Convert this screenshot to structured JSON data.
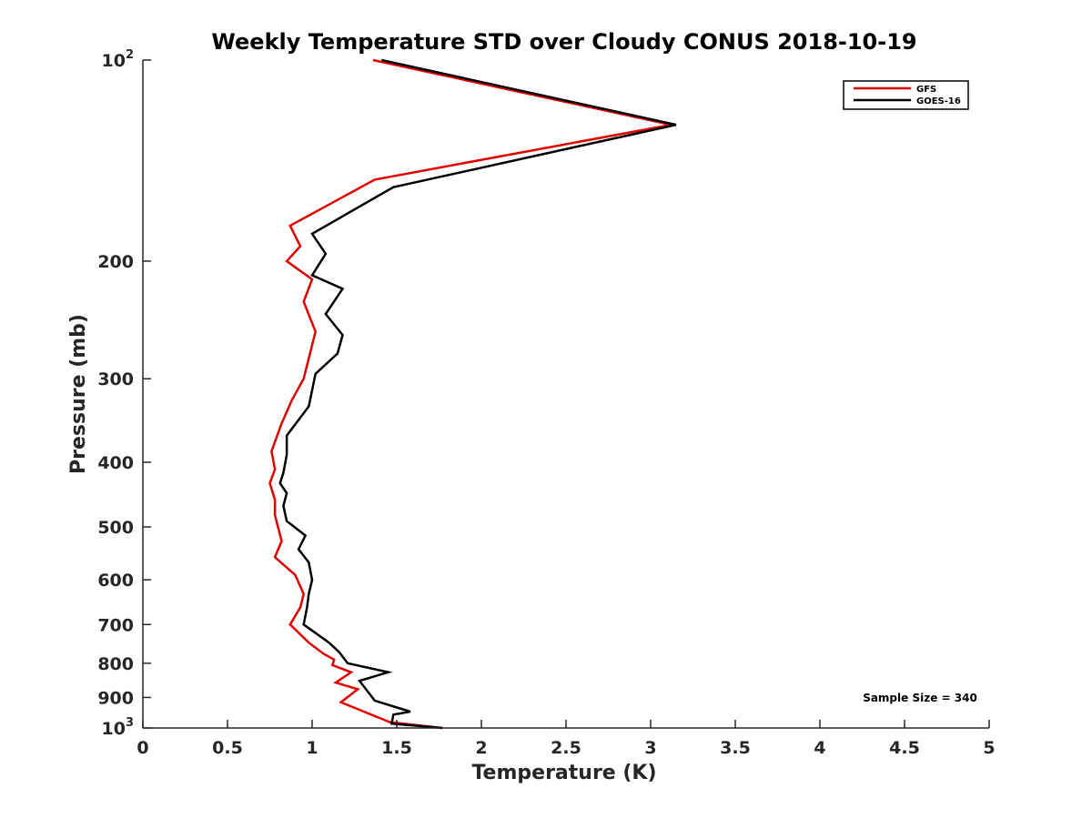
{
  "chart_data": {
    "type": "line",
    "title": "Weekly Temperature STD over Cloudy CONUS 2018-10-19",
    "xlabel": "Temperature (K)",
    "ylabel": "Pressure (mb)",
    "xlim": [
      0,
      5
    ],
    "ylim": [
      100,
      1000
    ],
    "yscale": "log",
    "y_reversed": true,
    "x_ticks": [
      0,
      0.5,
      1,
      1.5,
      2,
      2.5,
      3,
      3.5,
      4,
      4.5,
      5
    ],
    "x_tick_labels": [
      "0",
      "0.5",
      "1",
      "1.5",
      "2",
      "2.5",
      "3",
      "3.5",
      "4",
      "4.5",
      "5"
    ],
    "y_ticks": [
      100,
      200,
      300,
      400,
      500,
      600,
      700,
      800,
      900,
      1000
    ],
    "y_tick_labels": [
      {
        "base": "10",
        "exp": "2"
      },
      {
        "base": "200",
        "exp": ""
      },
      {
        "base": "300",
        "exp": ""
      },
      {
        "base": "400",
        "exp": ""
      },
      {
        "base": "500",
        "exp": ""
      },
      {
        "base": "600",
        "exp": ""
      },
      {
        "base": "700",
        "exp": ""
      },
      {
        "base": "800",
        "exp": ""
      },
      {
        "base": "900",
        "exp": ""
      },
      {
        "base": "10",
        "exp": "3"
      }
    ],
    "grid": false,
    "legend_position": "top-right",
    "annotation": "Sample Size = 340",
    "series": [
      {
        "name": "GFS",
        "color": "#e00000",
        "points": [
          [
            1.36,
            100
          ],
          [
            3.12,
            125
          ],
          [
            1.37,
            151
          ],
          [
            0.87,
            177
          ],
          [
            0.93,
            190
          ],
          [
            0.85,
            200
          ],
          [
            1.0,
            213
          ],
          [
            0.95,
            230
          ],
          [
            1.02,
            255
          ],
          [
            0.95,
            300
          ],
          [
            0.88,
            323
          ],
          [
            0.82,
            350
          ],
          [
            0.76,
            385
          ],
          [
            0.78,
            410
          ],
          [
            0.75,
            430
          ],
          [
            0.78,
            455
          ],
          [
            0.78,
            480
          ],
          [
            0.82,
            525
          ],
          [
            0.78,
            555
          ],
          [
            0.9,
            590
          ],
          [
            0.95,
            630
          ],
          [
            0.93,
            660
          ],
          [
            0.87,
            700
          ],
          [
            0.98,
            745
          ],
          [
            1.07,
            775
          ],
          [
            1.13,
            790
          ],
          [
            1.12,
            805
          ],
          [
            1.23,
            825
          ],
          [
            1.14,
            855
          ],
          [
            1.27,
            875
          ],
          [
            1.17,
            915
          ],
          [
            1.46,
            980
          ],
          [
            1.77,
            1000
          ]
        ]
      },
      {
        "name": "GOES-16",
        "color": "#000000",
        "points": [
          [
            1.41,
            100
          ],
          [
            3.15,
            125
          ],
          [
            1.48,
            155
          ],
          [
            1.0,
            182
          ],
          [
            1.08,
            195
          ],
          [
            1.0,
            210
          ],
          [
            1.18,
            220
          ],
          [
            1.08,
            240
          ],
          [
            1.18,
            258
          ],
          [
            1.15,
            275
          ],
          [
            1.02,
            295
          ],
          [
            0.98,
            330
          ],
          [
            0.85,
            365
          ],
          [
            0.85,
            390
          ],
          [
            0.83,
            415
          ],
          [
            0.81,
            430
          ],
          [
            0.85,
            445
          ],
          [
            0.83,
            465
          ],
          [
            0.85,
            490
          ],
          [
            0.96,
            515
          ],
          [
            0.92,
            540
          ],
          [
            0.98,
            565
          ],
          [
            1.0,
            600
          ],
          [
            0.98,
            630
          ],
          [
            0.97,
            660
          ],
          [
            0.95,
            700
          ],
          [
            1.1,
            745
          ],
          [
            1.16,
            770
          ],
          [
            1.21,
            800
          ],
          [
            1.45,
            825
          ],
          [
            1.28,
            850
          ],
          [
            1.37,
            910
          ],
          [
            1.58,
            945
          ],
          [
            1.48,
            955
          ],
          [
            1.47,
            985
          ],
          [
            1.77,
            1000
          ]
        ]
      }
    ]
  }
}
